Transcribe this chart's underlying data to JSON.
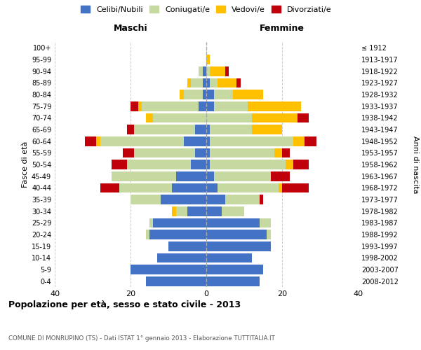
{
  "age_groups": [
    "0-4",
    "5-9",
    "10-14",
    "15-19",
    "20-24",
    "25-29",
    "30-34",
    "35-39",
    "40-44",
    "45-49",
    "50-54",
    "55-59",
    "60-64",
    "65-69",
    "70-74",
    "75-79",
    "80-84",
    "85-89",
    "90-94",
    "95-99",
    "100+"
  ],
  "birth_years": [
    "2008-2012",
    "2003-2007",
    "1998-2002",
    "1993-1997",
    "1988-1992",
    "1983-1987",
    "1978-1982",
    "1973-1977",
    "1968-1972",
    "1963-1967",
    "1958-1962",
    "1953-1957",
    "1948-1952",
    "1943-1947",
    "1938-1942",
    "1933-1937",
    "1928-1932",
    "1923-1927",
    "1918-1922",
    "1913-1917",
    "≤ 1912"
  ],
  "maschi": {
    "celibi": [
      16,
      20,
      13,
      10,
      15,
      14,
      5,
      12,
      9,
      8,
      4,
      3,
      6,
      3,
      0,
      2,
      1,
      1,
      1,
      0,
      0
    ],
    "coniugati": [
      0,
      0,
      0,
      0,
      1,
      1,
      3,
      8,
      14,
      17,
      17,
      16,
      22,
      16,
      14,
      15,
      5,
      3,
      1,
      0,
      0
    ],
    "vedovi": [
      0,
      0,
      0,
      0,
      0,
      0,
      1,
      0,
      0,
      0,
      0,
      0,
      1,
      0,
      2,
      1,
      1,
      1,
      0,
      0,
      0
    ],
    "divorziati": [
      0,
      0,
      0,
      0,
      0,
      0,
      0,
      0,
      5,
      0,
      4,
      3,
      3,
      2,
      0,
      2,
      0,
      0,
      0,
      0,
      0
    ]
  },
  "femmine": {
    "nubili": [
      14,
      15,
      12,
      17,
      16,
      14,
      4,
      5,
      3,
      2,
      1,
      1,
      1,
      1,
      0,
      2,
      2,
      1,
      0,
      0,
      0
    ],
    "coniugate": [
      0,
      0,
      0,
      0,
      1,
      3,
      6,
      9,
      16,
      15,
      20,
      17,
      22,
      11,
      12,
      9,
      5,
      2,
      1,
      0,
      0
    ],
    "vedove": [
      0,
      0,
      0,
      0,
      0,
      0,
      0,
      0,
      1,
      0,
      2,
      2,
      3,
      8,
      12,
      14,
      8,
      5,
      4,
      1,
      0
    ],
    "divorziate": [
      0,
      0,
      0,
      0,
      0,
      0,
      0,
      1,
      7,
      5,
      4,
      2,
      3,
      0,
      3,
      0,
      0,
      1,
      1,
      0,
      0
    ]
  },
  "colors": {
    "celibi": "#4472c4",
    "coniugati": "#c5d9a0",
    "vedovi": "#ffc000",
    "divorziati": "#c0000b"
  },
  "xlim": 40,
  "title": "Popolazione per età, sesso e stato civile - 2013",
  "subtitle": "COMUNE DI MONRUPINO (TS) - Dati ISTAT 1° gennaio 2013 - Elaborazione TUTTITALIA.IT",
  "ylabel_left": "Fasce di età",
  "ylabel_right": "Anni di nascita",
  "xlabel_left": "Maschi",
  "xlabel_right": "Femmine",
  "legend_labels": [
    "Celibi/Nubili",
    "Coniugati/e",
    "Vedovi/e",
    "Divorziati/e"
  ],
  "background_color": "#ffffff"
}
